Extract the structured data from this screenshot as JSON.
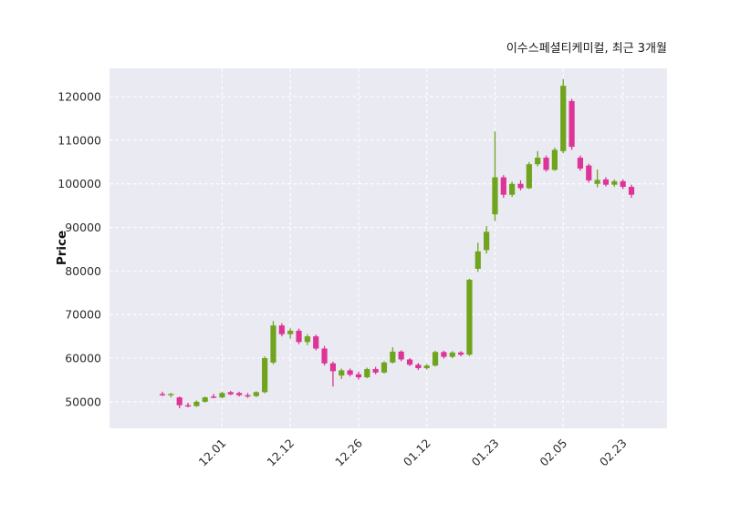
{
  "chart_data": {
    "type": "candlestick",
    "title": "이수스페셜티케미컬, 최근 3개월",
    "ylabel": "Price",
    "ylim": [
      43900,
      126500
    ],
    "yticks": [
      50000,
      60000,
      70000,
      80000,
      90000,
      100000,
      110000,
      120000
    ],
    "xtick_labels": [
      "12.01",
      "12.12",
      "12.26",
      "01.12",
      "01.23",
      "02.05",
      "02.23"
    ],
    "xtick_indices": [
      7,
      15,
      23,
      31,
      39,
      47,
      54
    ],
    "candle_format": [
      "open",
      "high",
      "low",
      "close"
    ],
    "colors": {
      "up": "#70a41f",
      "down": "#de3497",
      "plot_bg": "#eaeaf2",
      "grid": "#ffffff",
      "tick_text": "#2b2b2b",
      "title_text": "#1a1a1a"
    },
    "candles": [
      [
        51800,
        52300,
        51300,
        51500
      ],
      [
        51500,
        52000,
        51000,
        51800
      ],
      [
        51000,
        51200,
        48500,
        49200
      ],
      [
        49200,
        49800,
        48700,
        49000
      ],
      [
        49000,
        50300,
        48800,
        50000
      ],
      [
        50000,
        51200,
        49800,
        51000
      ],
      [
        51200,
        51800,
        50800,
        51000
      ],
      [
        51000,
        52300,
        50800,
        52000
      ],
      [
        52200,
        52500,
        51500,
        51700
      ],
      [
        52000,
        52300,
        51200,
        51500
      ],
      [
        51500,
        52000,
        50900,
        51200
      ],
      [
        51300,
        52400,
        51100,
        52200
      ],
      [
        52200,
        60400,
        51900,
        60000
      ],
      [
        59000,
        68500,
        58600,
        67500
      ],
      [
        67500,
        68000,
        65000,
        65500
      ],
      [
        65500,
        66800,
        64500,
        66300
      ],
      [
        66300,
        66800,
        63200,
        63700
      ],
      [
        63700,
        65500,
        63000,
        65000
      ],
      [
        65000,
        65400,
        61800,
        62200
      ],
      [
        62200,
        62800,
        58300,
        58800
      ],
      [
        58800,
        59200,
        53500,
        57000
      ],
      [
        56000,
        57600,
        55200,
        57200
      ],
      [
        57200,
        57600,
        55800,
        56200
      ],
      [
        56300,
        56900,
        55100,
        55600
      ],
      [
        55600,
        57800,
        55400,
        57500
      ],
      [
        57500,
        58000,
        56300,
        56700
      ],
      [
        56700,
        59300,
        56500,
        59000
      ],
      [
        59000,
        62500,
        58800,
        61500
      ],
      [
        61500,
        61800,
        59300,
        59700
      ],
      [
        59700,
        60000,
        58200,
        58500
      ],
      [
        58500,
        58900,
        57300,
        57700
      ],
      [
        57700,
        58600,
        57400,
        58300
      ],
      [
        58300,
        61700,
        58100,
        61400
      ],
      [
        61400,
        61700,
        59900,
        60300
      ],
      [
        60300,
        61600,
        60000,
        61300
      ],
      [
        61300,
        61600,
        60400,
        60800
      ],
      [
        60800,
        78200,
        60500,
        78000
      ],
      [
        80500,
        86500,
        79800,
        84500
      ],
      [
        84800,
        90300,
        84000,
        89000
      ],
      [
        93000,
        112000,
        91500,
        101500
      ],
      [
        101500,
        102000,
        96800,
        97500
      ],
      [
        97500,
        100500,
        97000,
        100000
      ],
      [
        100000,
        100800,
        98500,
        99000
      ],
      [
        99000,
        105000,
        98800,
        104500
      ],
      [
        104500,
        107500,
        104000,
        106000
      ],
      [
        106000,
        106500,
        102800,
        103200
      ],
      [
        103200,
        108300,
        103000,
        107800
      ],
      [
        107500,
        124000,
        107000,
        122500
      ],
      [
        119000,
        119500,
        107800,
        108500
      ],
      [
        106000,
        106500,
        103000,
        103500
      ],
      [
        104200,
        104600,
        100300,
        100800
      ],
      [
        100000,
        103300,
        99200,
        100900
      ],
      [
        101000,
        101500,
        99400,
        99800
      ],
      [
        99800,
        101000,
        99300,
        100600
      ],
      [
        100600,
        101000,
        98800,
        99300
      ],
      [
        99300,
        99800,
        96800,
        97500
      ]
    ]
  }
}
